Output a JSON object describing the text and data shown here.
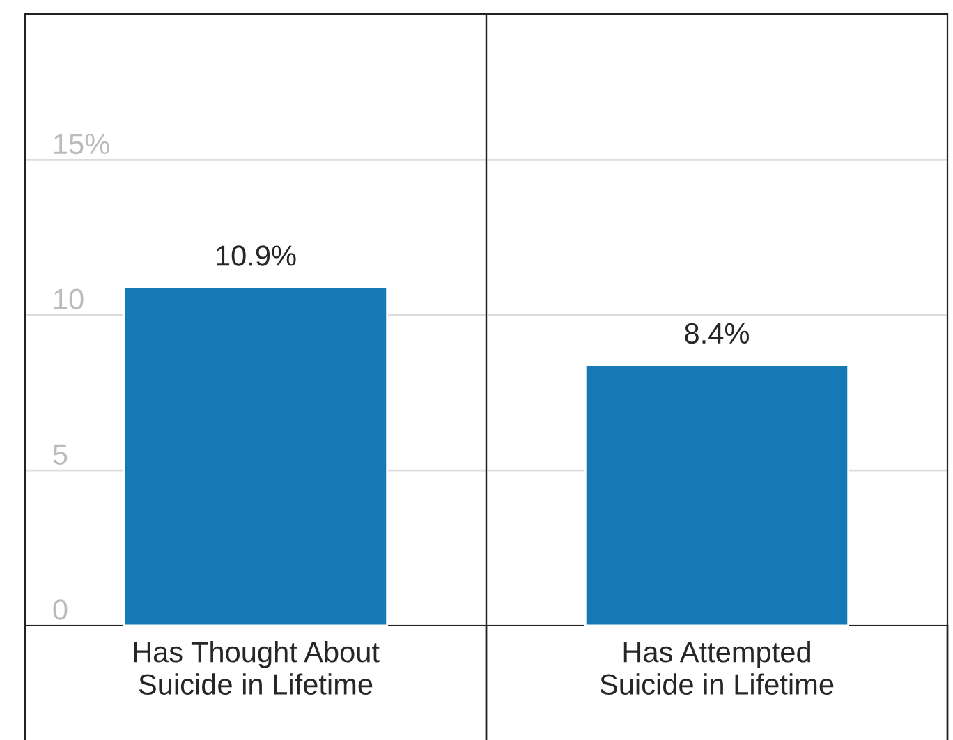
{
  "chart_data": {
    "type": "bar",
    "categories": [
      "Has Thought About\nSuicide in Lifetime",
      "Has Attempted\nSuicide in Lifetime"
    ],
    "values": [
      10.9,
      8.4
    ],
    "color": "#1479b5",
    "value_labels": [
      "10.9%",
      "8.4%"
    ],
    "ylim": [
      0,
      19.7
    ],
    "yticks": [
      {
        "value": 0,
        "label": "0"
      },
      {
        "value": 5,
        "label": "5"
      },
      {
        "value": 10,
        "label": "10"
      },
      {
        "value": 15,
        "label": "15%"
      }
    ],
    "grid": "y"
  }
}
